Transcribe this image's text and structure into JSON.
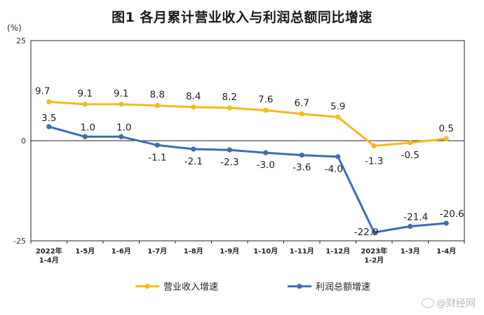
{
  "title": "图1  各月累计营业收入与利润总额同比增速",
  "watermark": "@财经网",
  "chart_data": {
    "type": "line",
    "unit_label": "(%)",
    "ylim": [
      -25,
      25
    ],
    "yticks": [
      "25",
      "0",
      "-25"
    ],
    "categories": [
      [
        "2022年",
        "1-4月"
      ],
      [
        "1-5月"
      ],
      [
        "1-6月"
      ],
      [
        "1-7月"
      ],
      [
        "1-8月"
      ],
      [
        "1-9月"
      ],
      [
        "1-10月"
      ],
      [
        "1-11月"
      ],
      [
        "1-12月"
      ],
      [
        "2023年",
        "1-2月"
      ],
      [
        "1-3月"
      ],
      [
        "1-4月"
      ]
    ],
    "series": [
      {
        "name": "营业收入增速",
        "color": "#f5b91b",
        "values": [
          9.7,
          9.1,
          9.1,
          8.8,
          8.4,
          8.2,
          7.6,
          6.7,
          5.9,
          -1.3,
          -0.5,
          0.5
        ],
        "labels": [
          "9.7",
          "9.1",
          "9.1",
          "8.8",
          "8.4",
          "8.2",
          "7.6",
          "6.7",
          "5.9",
          "-1.3",
          "-0.5",
          "0.5"
        ]
      },
      {
        "name": "利润总额增速",
        "color": "#3b6db4",
        "values": [
          3.5,
          1.0,
          1.0,
          -1.1,
          -2.1,
          -2.3,
          -3.0,
          -3.6,
          -4.0,
          -22.9,
          -21.4,
          -20.6
        ],
        "labels": [
          "3.5",
          "1.0",
          "1.0",
          "-1.1",
          "-2.1",
          "-2.3",
          "-3.0",
          "-3.6",
          "-4.0",
          "-22.9",
          "-21.4",
          "-20.6"
        ]
      }
    ],
    "grid": false,
    "legend_position": "bottom"
  }
}
